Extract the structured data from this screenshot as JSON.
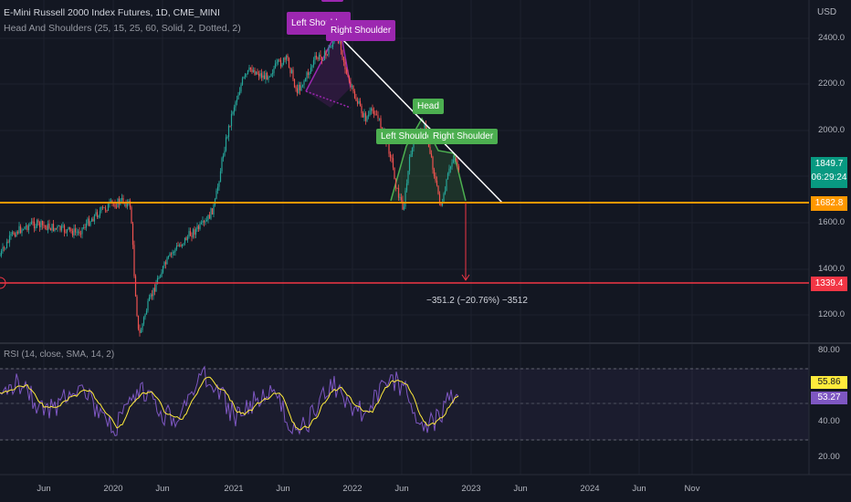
{
  "header": {
    "title": "E-Mini Russell 2000 Index Futures, 1D, CME_MINI",
    "indicator": "Head And Shoulders (25, 15, 25, 60, Solid, 2, Dotted, 2)"
  },
  "rsi_header": "RSI (14, close, SMA, 14, 2)",
  "currency": "USD",
  "y_axis": [
    "2400.0",
    "2200.0",
    "2000.0",
    "1600.0",
    "1400.0",
    "1200.0"
  ],
  "rsi_axis": [
    "80.00",
    "40.00",
    "20.00"
  ],
  "x_axis": [
    "Jun",
    "2020",
    "Jun",
    "2021",
    "Jun",
    "2022",
    "Jun",
    "2023",
    "Jun",
    "2024",
    "Jun",
    "Nov"
  ],
  "current_price": {
    "value": "1849.7",
    "countdown": "06:29:24"
  },
  "neckline_price": "1682.8",
  "target_price": "1339.4",
  "measure_label": "−351.2 (−20.76%) −3512",
  "rsi_values": {
    "rsi": "53.27",
    "sma": "55.86"
  },
  "pattern_labels": {
    "top_left_shoulder": "Left Shoulder",
    "top_right_shoulder": "Right Shoulder",
    "bottom_head": "Head",
    "bottom_left_shoulder": "Left Shoulder",
    "bottom_right_shoulder": "Right Shoulder"
  },
  "colors": {
    "background": "#131722",
    "up": "#26a69a",
    "down": "#ef5350",
    "neckline": "#ff9800",
    "target": "#f23645",
    "rsi": "#7e57c2",
    "rsi_sma": "#ffeb3b",
    "pattern_purple": "#9c27b0",
    "pattern_green": "#4caf50"
  }
}
